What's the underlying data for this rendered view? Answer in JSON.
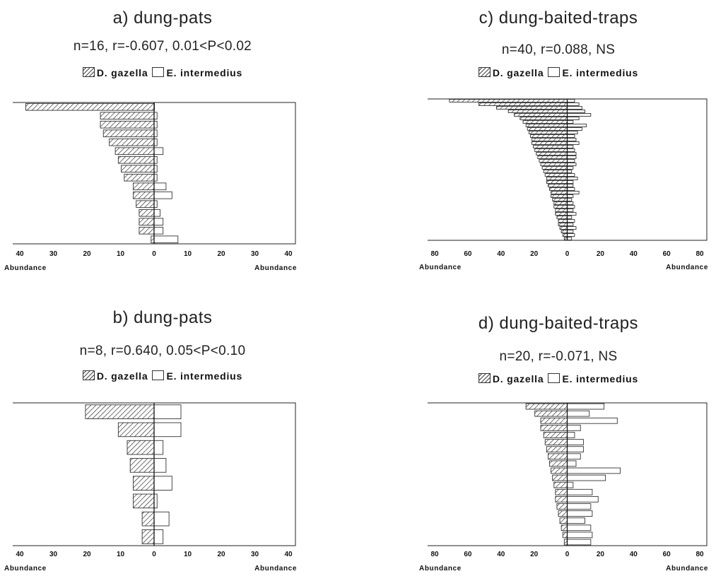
{
  "legend_labels": {
    "dgazella": "D. gazella",
    "eintermedius": "E. intermedius"
  },
  "chart_data": [
    {
      "id": "a",
      "type": "bar",
      "orientation": "horizontal-diverging",
      "title": "a) dung-pats",
      "stats": "n=16, r=-0.607, 0.01<P<0.02",
      "xlabel_left": "Abundance",
      "xlabel_right": "Abundance",
      "xticks": [
        "40",
        "30",
        "20",
        "10",
        "0",
        "10",
        "20",
        "30",
        "40"
      ],
      "xlim": [
        -45,
        45
      ],
      "series": [
        {
          "name": "D. gazella",
          "side": "left",
          "values": [
            43,
            18,
            18,
            17,
            15,
            13,
            12,
            11,
            10,
            7,
            7,
            6,
            5,
            5,
            5,
            1
          ]
        },
        {
          "name": "E. intermedius",
          "side": "right",
          "values": [
            0,
            1,
            1,
            1,
            1,
            3,
            1,
            1,
            1,
            4,
            6,
            1,
            2,
            3,
            3,
            8
          ]
        }
      ]
    },
    {
      "id": "c",
      "type": "bar",
      "orientation": "horizontal-diverging",
      "title": "c) dung-baited-traps",
      "stats": "n=40, r=0.088, NS",
      "xlabel_left": "Abundance",
      "xlabel_right": "Abundance",
      "xticks": [
        "80",
        "60",
        "40",
        "20",
        "0",
        "20",
        "40",
        "60",
        "80"
      ],
      "xlim": [
        -90,
        90
      ],
      "series": [
        {
          "name": "D. gazella",
          "side": "left",
          "values": [
            80,
            60,
            48,
            40,
            36,
            32,
            30,
            28,
            27,
            26,
            25,
            24,
            24,
            23,
            22,
            21,
            20,
            19,
            18,
            17,
            16,
            15,
            14,
            14,
            13,
            12,
            11,
            11,
            10,
            9,
            9,
            8,
            8,
            7,
            6,
            6,
            5,
            4,
            3,
            2
          ]
        },
        {
          "name": "E. intermedius",
          "side": "right",
          "values": [
            5,
            8,
            10,
            12,
            16,
            8,
            4,
            13,
            10,
            7,
            5,
            6,
            8,
            4,
            5,
            6,
            6,
            5,
            6,
            4,
            3,
            5,
            7,
            4,
            4,
            5,
            8,
            4,
            3,
            4,
            5,
            4,
            6,
            3,
            5,
            4,
            6,
            4,
            5,
            3
          ]
        }
      ]
    },
    {
      "id": "b",
      "type": "bar",
      "orientation": "horizontal-diverging",
      "title": "b) dung-pats",
      "stats": "n=8, r=0.640, 0.05<P<0.10",
      "xlabel_left": "Abundance",
      "xlabel_right": "Abundance",
      "xticks": [
        "40",
        "30",
        "20",
        "10",
        "0",
        "10",
        "20",
        "30",
        "40"
      ],
      "xlim": [
        -45,
        45
      ],
      "series": [
        {
          "name": "D. gazella",
          "side": "left",
          "values": [
            23,
            12,
            9,
            8,
            7,
            7,
            4,
            4
          ]
        },
        {
          "name": "E. intermedius",
          "side": "right",
          "values": [
            9,
            9,
            3,
            4,
            6,
            1,
            5,
            3
          ]
        }
      ]
    },
    {
      "id": "d",
      "type": "bar",
      "orientation": "horizontal-diverging",
      "title": "d) dung-baited-traps",
      "stats": "n=20, r=-0.071, NS",
      "xlabel_left": "Abundance",
      "xlabel_right": "Abundance",
      "xticks": [
        "80",
        "60",
        "40",
        "20",
        "0",
        "20",
        "40",
        "60",
        "80"
      ],
      "xlim": [
        -90,
        90
      ],
      "series": [
        {
          "name": "D. gazella",
          "side": "left",
          "values": [
            28,
            22,
            18,
            18,
            16,
            15,
            14,
            13,
            12,
            11,
            10,
            9,
            8,
            8,
            7,
            6,
            5,
            4,
            3,
            2
          ]
        },
        {
          "name": "E. intermedius",
          "side": "right",
          "values": [
            25,
            15,
            34,
            9,
            5,
            11,
            11,
            9,
            6,
            36,
            26,
            4,
            17,
            21,
            16,
            17,
            12,
            16,
            17,
            16
          ]
        }
      ]
    }
  ]
}
